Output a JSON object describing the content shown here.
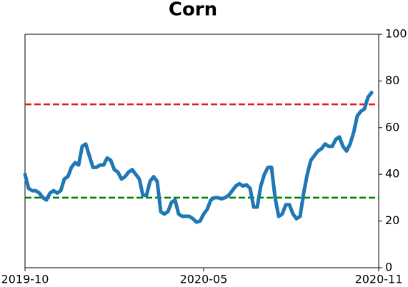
{
  "chart_data": {
    "type": "line",
    "title": "Corn",
    "categories": [
      "2019-10",
      null,
      null,
      null,
      null,
      null,
      null,
      null,
      null,
      null,
      null,
      null,
      null,
      null,
      null,
      null,
      null,
      null,
      null,
      null,
      null,
      null,
      null,
      null,
      null,
      null,
      null,
      null,
      null,
      null,
      null,
      null,
      null,
      null,
      null,
      null,
      null,
      null,
      null,
      null,
      null,
      null,
      null,
      null,
      null,
      null,
      null,
      null,
      null,
      null,
      "2020-05",
      null,
      null,
      null,
      null,
      null,
      null,
      null,
      null,
      null,
      null,
      null,
      null,
      null,
      null,
      null,
      null,
      null,
      null,
      null,
      null,
      null,
      null,
      null,
      null,
      null,
      null,
      null,
      null,
      null,
      null,
      null,
      null,
      null,
      null,
      null,
      null,
      null,
      null,
      null,
      null,
      null,
      null,
      null,
      null,
      null,
      null,
      null,
      null,
      "2020-11"
    ],
    "series": [
      {
        "color": "#1f77b4",
        "values": [
          40,
          34,
          33,
          33,
          32,
          30,
          29,
          32,
          33,
          32,
          33,
          38,
          39,
          43,
          45,
          44,
          52,
          53,
          48,
          43,
          43,
          44,
          44,
          47,
          46,
          42,
          41,
          38,
          39,
          41,
          42,
          40,
          38,
          31,
          31,
          37,
          39,
          37,
          24,
          23,
          24,
          28,
          29,
          23,
          22,
          22,
          22,
          21,
          19.5,
          20,
          23,
          25,
          29,
          30,
          30,
          29.5,
          30,
          31,
          33,
          35,
          36,
          35,
          35.5,
          34,
          26,
          26,
          35,
          40,
          43,
          43,
          30,
          22,
          23,
          27,
          27,
          23,
          21,
          22,
          32,
          40,
          46,
          48,
          50,
          51,
          53,
          52,
          52,
          55,
          56,
          52,
          50,
          53,
          58,
          65,
          67,
          68,
          73,
          75,
          null,
          null
        ]
      }
    ],
    "hlines": [
      {
        "value": 70,
        "color": "#e41a1c"
      },
      {
        "value": 30,
        "color": "#008000"
      }
    ],
    "ylim": [
      0,
      100
    ],
    "yticks": [
      0,
      20,
      40,
      60,
      80,
      100
    ],
    "y_axis_side": "right"
  }
}
